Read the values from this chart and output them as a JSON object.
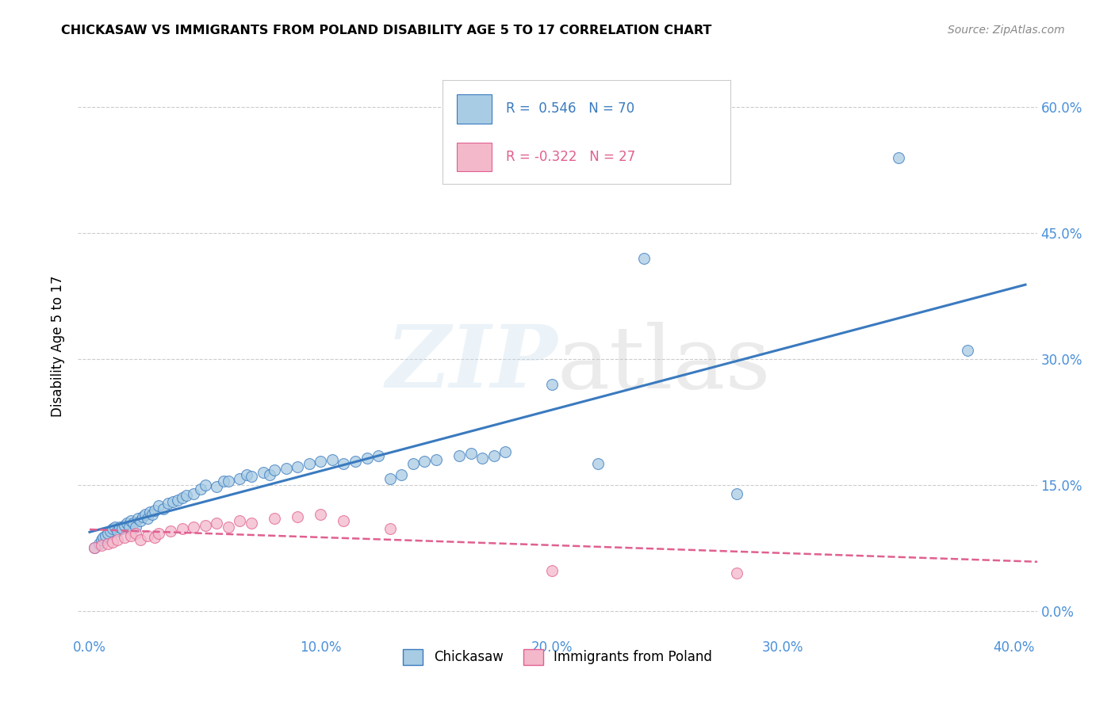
{
  "title": "CHICKASAW VS IMMIGRANTS FROM POLAND DISABILITY AGE 5 TO 17 CORRELATION CHART",
  "source": "Source: ZipAtlas.com",
  "ylabel": "Disability Age 5 to 17",
  "xlim": [
    -0.005,
    0.41
  ],
  "ylim": [
    -0.03,
    0.66
  ],
  "xticks": [
    0.0,
    0.1,
    0.2,
    0.3,
    0.4
  ],
  "xtick_labels": [
    "0.0%",
    "10.0%",
    "20.0%",
    "30.0%",
    "40.0%"
  ],
  "ytick_positions": [
    0.0,
    0.15,
    0.3,
    0.45,
    0.6
  ],
  "ytick_labels": [
    "0.0%",
    "15.0%",
    "30.0%",
    "45.0%",
    "60.0%"
  ],
  "blue_color": "#a8cce4",
  "pink_color": "#f4b8cb",
  "blue_line_color": "#3a7abf",
  "pink_line_color": "#e06090",
  "tick_color": "#4a90d9",
  "R_blue": 0.546,
  "N_blue": 70,
  "R_pink": -0.322,
  "N_pink": 27,
  "legend_labels": [
    "Chickasaw",
    "Immigrants from Poland"
  ],
  "watermark": "ZIPatlas",
  "blue_scatter_x": [
    0.002,
    0.004,
    0.005,
    0.006,
    0.007,
    0.008,
    0.009,
    0.01,
    0.011,
    0.012,
    0.013,
    0.014,
    0.015,
    0.016,
    0.017,
    0.018,
    0.019,
    0.02,
    0.021,
    0.022,
    0.023,
    0.024,
    0.025,
    0.026,
    0.027,
    0.028,
    0.03,
    0.032,
    0.034,
    0.036,
    0.038,
    0.04,
    0.042,
    0.045,
    0.048,
    0.05,
    0.055,
    0.058,
    0.06,
    0.065,
    0.068,
    0.07,
    0.075,
    0.078,
    0.08,
    0.085,
    0.09,
    0.095,
    0.1,
    0.105,
    0.11,
    0.115,
    0.12,
    0.125,
    0.13,
    0.135,
    0.14,
    0.145,
    0.15,
    0.16,
    0.165,
    0.17,
    0.175,
    0.18,
    0.2,
    0.22,
    0.24,
    0.28,
    0.35,
    0.38
  ],
  "blue_scatter_y": [
    0.075,
    0.08,
    0.085,
    0.088,
    0.09,
    0.092,
    0.095,
    0.098,
    0.1,
    0.095,
    0.1,
    0.098,
    0.102,
    0.105,
    0.1,
    0.108,
    0.105,
    0.1,
    0.11,
    0.108,
    0.112,
    0.115,
    0.11,
    0.118,
    0.115,
    0.12,
    0.125,
    0.122,
    0.128,
    0.13,
    0.132,
    0.135,
    0.138,
    0.14,
    0.145,
    0.15,
    0.148,
    0.155,
    0.155,
    0.158,
    0.162,
    0.16,
    0.165,
    0.162,
    0.168,
    0.17,
    0.172,
    0.175,
    0.178,
    0.18,
    0.175,
    0.178,
    0.182,
    0.185,
    0.158,
    0.162,
    0.175,
    0.178,
    0.18,
    0.185,
    0.188,
    0.182,
    0.185,
    0.19,
    0.27,
    0.175,
    0.42,
    0.14,
    0.54,
    0.31
  ],
  "pink_scatter_x": [
    0.002,
    0.005,
    0.008,
    0.01,
    0.012,
    0.015,
    0.018,
    0.02,
    0.022,
    0.025,
    0.028,
    0.03,
    0.035,
    0.04,
    0.045,
    0.05,
    0.055,
    0.06,
    0.065,
    0.07,
    0.08,
    0.09,
    0.1,
    0.11,
    0.13,
    0.2,
    0.28
  ],
  "pink_scatter_y": [
    0.075,
    0.078,
    0.08,
    0.082,
    0.085,
    0.088,
    0.09,
    0.092,
    0.085,
    0.09,
    0.088,
    0.092,
    0.095,
    0.098,
    0.1,
    0.102,
    0.105,
    0.1,
    0.108,
    0.105,
    0.11,
    0.112,
    0.115,
    0.108,
    0.098,
    0.048,
    0.045
  ]
}
